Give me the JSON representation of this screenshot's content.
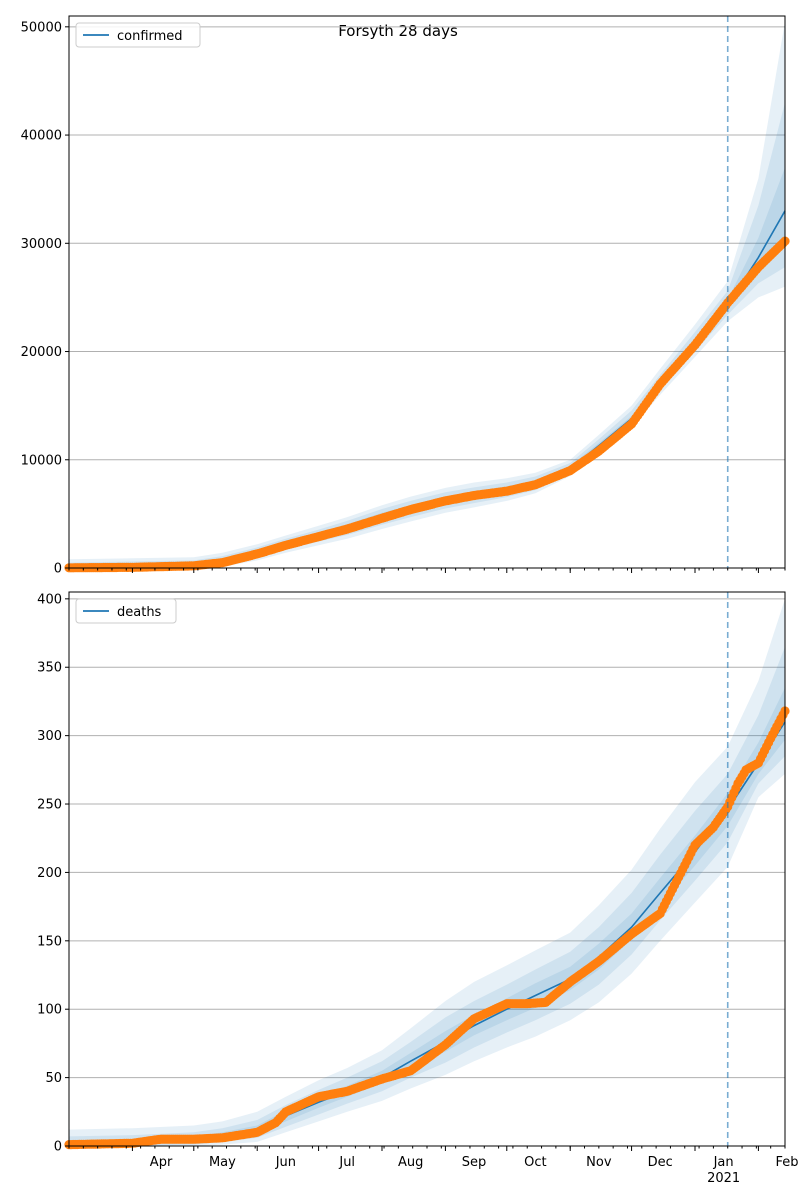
{
  "figure": {
    "title": "Forsyth 28 days"
  },
  "colors": {
    "model": "#1f77b4",
    "observed": "#ff7f0e",
    "band": "#1f77b4",
    "grid": "#b0b0b0",
    "forecast_line": "#1f77b4"
  },
  "chart_data": [
    {
      "type": "line",
      "name": "confirmed-panel",
      "legend": "confirmed",
      "legend_position": "top-left",
      "grid": "horizontal",
      "x_start": "2020-03-01",
      "x_end": "2021-02-14",
      "forecast_start": "2021-01-17",
      "ylim": [
        0,
        51000
      ],
      "yticks": [
        0,
        10000,
        20000,
        30000,
        40000,
        50000
      ],
      "model": {
        "x": [
          "2020-03-01",
          "2020-04-01",
          "2020-05-01",
          "2020-05-15",
          "2020-06-01",
          "2020-06-15",
          "2020-07-01",
          "2020-07-15",
          "2020-08-01",
          "2020-08-15",
          "2020-09-01",
          "2020-09-15",
          "2020-10-01",
          "2020-10-15",
          "2020-11-01",
          "2020-11-15",
          "2020-12-01",
          "2020-12-15",
          "2021-01-01",
          "2021-01-17",
          "2021-02-01",
          "2021-02-14"
        ],
        "y": [
          50,
          120,
          250,
          600,
          1400,
          2200,
          3000,
          3700,
          4700,
          5400,
          6200,
          6700,
          7200,
          7800,
          9200,
          11300,
          13800,
          17000,
          20700,
          24300,
          28700,
          33000
        ]
      },
      "bands": [
        {
          "lower": [
            0,
            0,
            0,
            100,
            700,
            1400,
            2100,
            2700,
            3600,
            4300,
            5100,
            5600,
            6200,
            6900,
            8500,
            10500,
            13000,
            16000,
            19500,
            22800,
            25000,
            26000
          ],
          "upper": [
            800,
            900,
            1000,
            1400,
            2200,
            3000,
            3900,
            4700,
            5800,
            6600,
            7400,
            7900,
            8300,
            8800,
            10000,
            12300,
            15000,
            18400,
            22500,
            26500,
            36000,
            50500
          ]
        },
        {
          "lower": [
            0,
            0,
            50,
            250,
            950,
            1700,
            2450,
            3050,
            4000,
            4700,
            5500,
            6000,
            6550,
            7200,
            8750,
            10800,
            13300,
            16400,
            20000,
            23400,
            26300,
            27800
          ],
          "upper": [
            500,
            600,
            700,
            1100,
            1900,
            2700,
            3550,
            4350,
            5450,
            6200,
            7000,
            7450,
            7900,
            8450,
            9700,
            11900,
            14550,
            17850,
            21800,
            25600,
            33500,
            43000
          ]
        },
        {
          "lower": [
            0,
            20,
            150,
            400,
            1150,
            1950,
            2700,
            3350,
            4300,
            5000,
            5800,
            6300,
            6850,
            7500,
            8950,
            11050,
            13550,
            16700,
            20350,
            23900,
            27500,
            30000
          ],
          "upper": [
            250,
            350,
            450,
            850,
            1650,
            2450,
            3300,
            4050,
            5100,
            5800,
            6600,
            7100,
            7550,
            8100,
            9450,
            11550,
            14050,
            17300,
            21100,
            24800,
            30500,
            37000
          ]
        }
      ],
      "observed": {
        "x": [
          "2020-03-01",
          "2020-04-01",
          "2020-05-01",
          "2020-05-15",
          "2020-06-01",
          "2020-06-15",
          "2020-07-01",
          "2020-07-15",
          "2020-08-01",
          "2020-08-15",
          "2020-09-01",
          "2020-09-15",
          "2020-10-01",
          "2020-10-15",
          "2020-11-01",
          "2020-11-15",
          "2020-12-01",
          "2020-12-15",
          "2021-01-01",
          "2021-01-17",
          "2021-02-01",
          "2021-02-14"
        ],
        "y": [
          20,
          60,
          200,
          500,
          1300,
          2100,
          2900,
          3600,
          4600,
          5400,
          6200,
          6700,
          7100,
          7700,
          9000,
          10800,
          13300,
          17000,
          20600,
          24500,
          27800,
          30200
        ]
      }
    },
    {
      "type": "line",
      "name": "deaths-panel",
      "legend": "deaths",
      "legend_position": "top-left",
      "grid": "horizontal",
      "x_start": "2020-03-01",
      "x_end": "2021-02-14",
      "forecast_start": "2021-01-17",
      "ylim": [
        0,
        405
      ],
      "yticks": [
        0,
        50,
        100,
        150,
        200,
        250,
        300,
        350,
        400
      ],
      "xtick_labels": [
        {
          "date": "2020-04-01",
          "label": "Apr"
        },
        {
          "date": "2020-05-01",
          "label": "May"
        },
        {
          "date": "2020-06-01",
          "label": "Jun"
        },
        {
          "date": "2020-07-01",
          "label": "Jul"
        },
        {
          "date": "2020-08-01",
          "label": "Aug"
        },
        {
          "date": "2020-09-01",
          "label": "Sep"
        },
        {
          "date": "2020-10-01",
          "label": "Oct"
        },
        {
          "date": "2020-11-01",
          "label": "Nov"
        },
        {
          "date": "2020-12-01",
          "label": "Dec"
        },
        {
          "date": "2021-01-01",
          "label": "Jan"
        },
        {
          "date": "2021-02-01",
          "label": "Feb"
        }
      ],
      "year_label": "2021",
      "model": {
        "x": [
          "2020-03-01",
          "2020-04-01",
          "2020-05-01",
          "2020-05-15",
          "2020-06-01",
          "2020-06-15",
          "2020-07-01",
          "2020-07-15",
          "2020-08-01",
          "2020-08-15",
          "2020-09-01",
          "2020-09-15",
          "2020-10-01",
          "2020-10-15",
          "2020-11-01",
          "2020-11-15",
          "2020-12-01",
          "2020-12-15",
          "2021-01-01",
          "2021-01-17",
          "2021-02-01",
          "2021-02-14"
        ],
        "y": [
          1,
          2,
          5,
          7,
          12,
          22,
          32,
          40,
          50,
          62,
          76,
          88,
          100,
          110,
          122,
          138,
          160,
          185,
          215,
          246,
          280,
          310
        ]
      },
      "bands": [
        {
          "lower": [
            0,
            0,
            0,
            1,
            3,
            10,
            18,
            25,
            33,
            42,
            52,
            62,
            72,
            80,
            92,
            105,
            126,
            150,
            178,
            204,
            255,
            272
          ],
          "upper": [
            12,
            13,
            15,
            18,
            25,
            36,
            48,
            57,
            70,
            86,
            106,
            120,
            132,
            143,
            156,
            176,
            202,
            232,
            266,
            292,
            340,
            400
          ]
        },
        {
          "lower": [
            0,
            0,
            1,
            3,
            6,
            14,
            23,
            31,
            40,
            50,
            61,
            72,
            83,
            92,
            104,
            118,
            140,
            165,
            194,
            222,
            265,
            285
          ],
          "upper": [
            7,
            8,
            10,
            13,
            19,
            30,
            41,
            50,
            62,
            76,
            94,
            106,
            118,
            129,
            142,
            160,
            185,
            213,
            245,
            272,
            315,
            365
          ]
        },
        {
          "lower": [
            0,
            1,
            3,
            5,
            9,
            18,
            28,
            36,
            46,
            57,
            69,
            81,
            92,
            101,
            114,
            129,
            151,
            176,
            205,
            234,
            272,
            297
          ],
          "upper": [
            3,
            4,
            7,
            10,
            15,
            26,
            36,
            44,
            55,
            68,
            84,
            96,
            108,
            119,
            131,
            148,
            170,
            196,
            227,
            258,
            295,
            335
          ]
        }
      ],
      "observed": {
        "x": [
          "2020-03-01",
          "2020-04-01",
          "2020-04-15",
          "2020-05-01",
          "2020-05-15",
          "2020-06-01",
          "2020-06-10",
          "2020-06-15",
          "2020-07-01",
          "2020-07-15",
          "2020-08-01",
          "2020-08-15",
          "2020-09-01",
          "2020-09-15",
          "2020-10-01",
          "2020-10-10",
          "2020-10-20",
          "2020-11-01",
          "2020-11-15",
          "2020-12-01",
          "2020-12-15",
          "2021-01-01",
          "2021-01-10",
          "2021-01-17",
          "2021-01-22",
          "2021-01-26",
          "2021-02-01",
          "2021-02-07",
          "2021-02-14"
        ],
        "y": [
          1,
          2,
          5,
          5,
          6,
          10,
          17,
          25,
          36,
          40,
          49,
          55,
          74,
          93,
          104,
          104,
          105,
          120,
          135,
          155,
          170,
          220,
          233,
          248,
          265,
          275,
          280,
          298,
          318
        ]
      }
    }
  ]
}
